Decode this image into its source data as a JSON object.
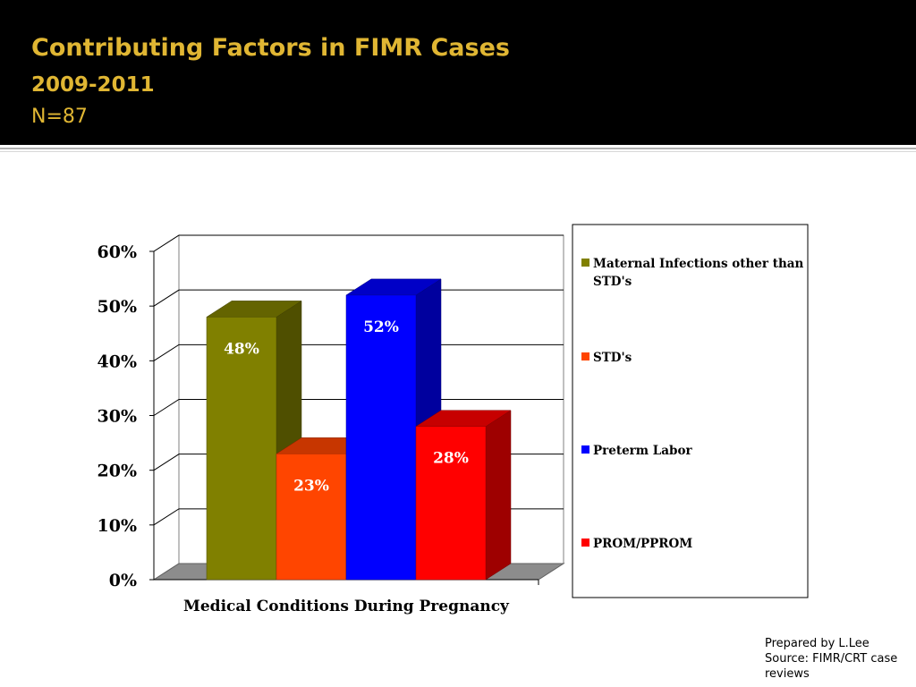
{
  "slide": {
    "title": "Contributing Factors in FIMR Cases",
    "subtitle": "2009-2011",
    "sample": "N=87"
  },
  "footer": {
    "prepared_by": "Prepared by L.Lee",
    "source": "Source: FIMR/CRT case reviews"
  },
  "chart_data": {
    "type": "bar",
    "title": "",
    "xlabel": "Medical Conditions During Pregnancy",
    "ylabel": "",
    "ylim": [
      0,
      60
    ],
    "yticks": [
      "0%",
      "10%",
      "20%",
      "30%",
      "40%",
      "50%",
      "60%"
    ],
    "grid": true,
    "legend_position": "right",
    "categories": [
      "Medical Conditions During Pregnancy"
    ],
    "series": [
      {
        "name": "Maternal Infections other than STD's",
        "values": [
          48
        ],
        "label": "48%",
        "color": "#808000"
      },
      {
        "name": "STD's",
        "values": [
          23
        ],
        "label": "23%",
        "color": "#ff4500"
      },
      {
        "name": "Preterm Labor",
        "values": [
          52
        ],
        "label": "52%",
        "color": "#0000ff"
      },
      {
        "name": "PROM/PPROM",
        "values": [
          28
        ],
        "label": "28%",
        "color": "#ff0000"
      }
    ]
  }
}
